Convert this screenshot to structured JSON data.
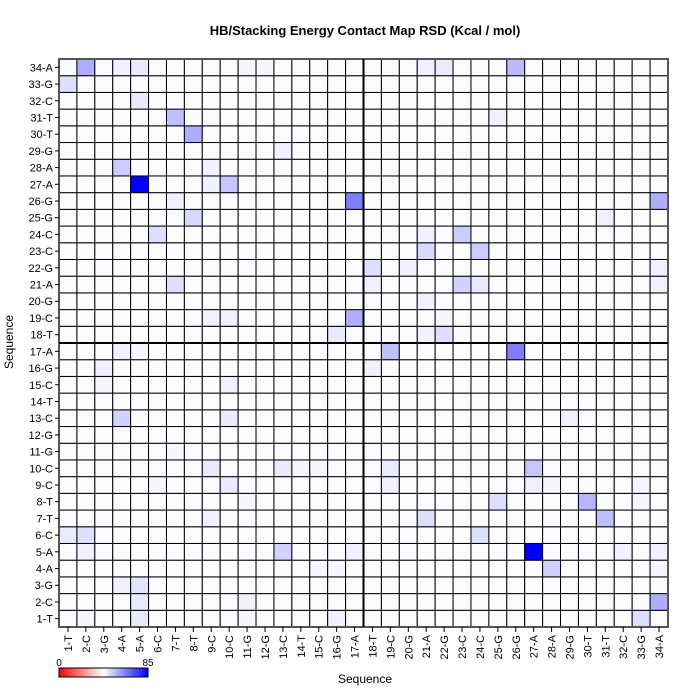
{
  "chart_data": {
    "type": "heatmap",
    "title": "HB/Stacking Energy Contact Map RSD (Kcal / mol)",
    "xlabel": "Sequence",
    "ylabel": "Sequence",
    "labels": [
      "1-T",
      "2-C",
      "3-G",
      "4-A",
      "5-A",
      "6-C",
      "7-T",
      "8-T",
      "9-C",
      "10-C",
      "11-G",
      "12-G",
      "13-C",
      "14-T",
      "15-C",
      "16-G",
      "17-A",
      "18-T",
      "19-C",
      "20-G",
      "21-A",
      "22-G",
      "23-C",
      "24-C",
      "25-G",
      "26-G",
      "27-A",
      "28-A",
      "29-G",
      "30-T",
      "31-T",
      "32-C",
      "33-G",
      "34-A"
    ],
    "colorbar": {
      "min": 0,
      "max": 85,
      "min_label": "0",
      "max_label": "85",
      "colors": [
        "#ff0000",
        "#ffffff",
        "#0000ff"
      ]
    },
    "default_value": 43,
    "cells_note": "x = column sequence index, y = row sequence index, v = value",
    "cells": [
      {
        "x": 2,
        "y": 34,
        "v": 56
      },
      {
        "x": 4,
        "y": 34,
        "v": 45
      },
      {
        "x": 5,
        "y": 34,
        "v": 46
      },
      {
        "x": 11,
        "y": 34,
        "v": 44
      },
      {
        "x": 12,
        "y": 34,
        "v": 44
      },
      {
        "x": 21,
        "y": 34,
        "v": 45
      },
      {
        "x": 22,
        "y": 34,
        "v": 46
      },
      {
        "x": 26,
        "y": 34,
        "v": 54
      },
      {
        "x": 1,
        "y": 33,
        "v": 48
      },
      {
        "x": 5,
        "y": 32,
        "v": 46
      },
      {
        "x": 7,
        "y": 31,
        "v": 53
      },
      {
        "x": 25,
        "y": 31,
        "v": 45
      },
      {
        "x": 8,
        "y": 30,
        "v": 56
      },
      {
        "x": 13,
        "y": 29,
        "v": 45
      },
      {
        "x": 4,
        "y": 28,
        "v": 51
      },
      {
        "x": 9,
        "y": 28,
        "v": 45
      },
      {
        "x": 5,
        "y": 27,
        "v": 85
      },
      {
        "x": 10,
        "y": 27,
        "v": 52
      },
      {
        "x": 9,
        "y": 27,
        "v": 45
      },
      {
        "x": 17,
        "y": 26,
        "v": 64
      },
      {
        "x": 7,
        "y": 26,
        "v": 45
      },
      {
        "x": 34,
        "y": 26,
        "v": 56
      },
      {
        "x": 8,
        "y": 25,
        "v": 49
      },
      {
        "x": 31,
        "y": 25,
        "v": 45
      },
      {
        "x": 6,
        "y": 24,
        "v": 48
      },
      {
        "x": 21,
        "y": 24,
        "v": 45
      },
      {
        "x": 23,
        "y": 24,
        "v": 51
      },
      {
        "x": 21,
        "y": 23,
        "v": 49
      },
      {
        "x": 24,
        "y": 23,
        "v": 51
      },
      {
        "x": 18,
        "y": 22,
        "v": 48
      },
      {
        "x": 20,
        "y": 22,
        "v": 45
      },
      {
        "x": 34,
        "y": 22,
        "v": 45
      },
      {
        "x": 7,
        "y": 21,
        "v": 48
      },
      {
        "x": 18,
        "y": 21,
        "v": 45
      },
      {
        "x": 23,
        "y": 21,
        "v": 50
      },
      {
        "x": 24,
        "y": 21,
        "v": 46
      },
      {
        "x": 34,
        "y": 21,
        "v": 45
      },
      {
        "x": 21,
        "y": 20,
        "v": 45
      },
      {
        "x": 17,
        "y": 19,
        "v": 56
      },
      {
        "x": 9,
        "y": 19,
        "v": 45
      },
      {
        "x": 10,
        "y": 19,
        "v": 45
      },
      {
        "x": 22,
        "y": 19,
        "v": 44
      },
      {
        "x": 16,
        "y": 18,
        "v": 46
      },
      {
        "x": 21,
        "y": 18,
        "v": 45
      },
      {
        "x": 22,
        "y": 18,
        "v": 48
      },
      {
        "x": 4,
        "y": 17,
        "v": 45
      },
      {
        "x": 5,
        "y": 17,
        "v": 44
      },
      {
        "x": 19,
        "y": 17,
        "v": 53
      },
      {
        "x": 26,
        "y": 17,
        "v": 64
      },
      {
        "x": 3,
        "y": 16,
        "v": 45
      },
      {
        "x": 18,
        "y": 16,
        "v": 45
      },
      {
        "x": 3,
        "y": 15,
        "v": 44
      },
      {
        "x": 10,
        "y": 15,
        "v": 45
      },
      {
        "x": 4,
        "y": 13,
        "v": 50
      },
      {
        "x": 10,
        "y": 13,
        "v": 46
      },
      {
        "x": 29,
        "y": 13,
        "v": 45
      },
      {
        "x": 7,
        "y": 11,
        "v": 44
      },
      {
        "x": 9,
        "y": 10,
        "v": 46
      },
      {
        "x": 13,
        "y": 10,
        "v": 46
      },
      {
        "x": 14,
        "y": 10,
        "v": 44
      },
      {
        "x": 15,
        "y": 10,
        "v": 44
      },
      {
        "x": 19,
        "y": 10,
        "v": 46
      },
      {
        "x": 27,
        "y": 10,
        "v": 52
      },
      {
        "x": 10,
        "y": 9,
        "v": 46
      },
      {
        "x": 6,
        "y": 9,
        "v": 44
      },
      {
        "x": 19,
        "y": 9,
        "v": 45
      },
      {
        "x": 27,
        "y": 9,
        "v": 45
      },
      {
        "x": 28,
        "y": 9,
        "v": 44
      },
      {
        "x": 33,
        "y": 9,
        "v": 44
      },
      {
        "x": 11,
        "y": 8,
        "v": 44
      },
      {
        "x": 25,
        "y": 8,
        "v": 48
      },
      {
        "x": 30,
        "y": 8,
        "v": 55
      },
      {
        "x": 33,
        "y": 8,
        "v": 44
      },
      {
        "x": 9,
        "y": 7,
        "v": 45
      },
      {
        "x": 21,
        "y": 7,
        "v": 48
      },
      {
        "x": 31,
        "y": 7,
        "v": 53
      },
      {
        "x": 1,
        "y": 6,
        "v": 46
      },
      {
        "x": 2,
        "y": 6,
        "v": 48
      },
      {
        "x": 24,
        "y": 6,
        "v": 48
      },
      {
        "x": 2,
        "y": 5,
        "v": 45
      },
      {
        "x": 13,
        "y": 5,
        "v": 50
      },
      {
        "x": 17,
        "y": 5,
        "v": 45
      },
      {
        "x": 27,
        "y": 5,
        "v": 85
      },
      {
        "x": 32,
        "y": 5,
        "v": 45
      },
      {
        "x": 34,
        "y": 5,
        "v": 45
      },
      {
        "x": 15,
        "y": 4,
        "v": 44
      },
      {
        "x": 16,
        "y": 4,
        "v": 44
      },
      {
        "x": 28,
        "y": 4,
        "v": 50
      },
      {
        "x": 34,
        "y": 4,
        "v": 44
      },
      {
        "x": 5,
        "y": 3,
        "v": 47
      },
      {
        "x": 4,
        "y": 3,
        "v": 45
      },
      {
        "x": 5,
        "y": 2,
        "v": 46
      },
      {
        "x": 11,
        "y": 2,
        "v": 45
      },
      {
        "x": 34,
        "y": 2,
        "v": 56
      },
      {
        "x": 2,
        "y": 1,
        "v": 44
      },
      {
        "x": 5,
        "y": 1,
        "v": 46
      },
      {
        "x": 11,
        "y": 1,
        "v": 44
      },
      {
        "x": 16,
        "y": 1,
        "v": 45
      },
      {
        "x": 33,
        "y": 1,
        "v": 48
      }
    ]
  }
}
